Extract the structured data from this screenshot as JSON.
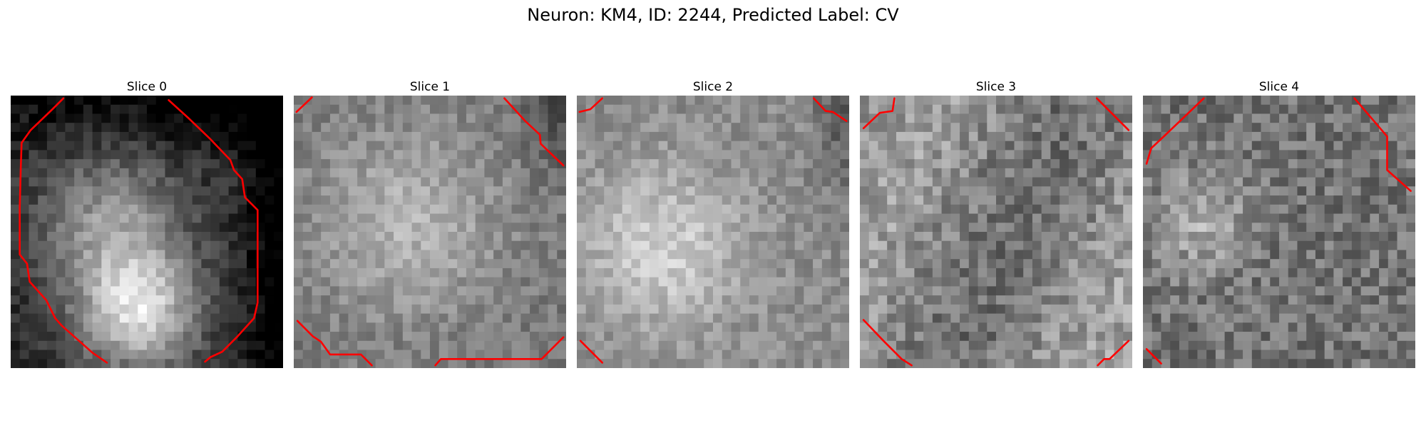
{
  "figure": {
    "title": "Neuron: KM4, ID: 2244, Predicted Label: CV",
    "contour_color": "#ff0000",
    "panels": [
      {
        "title": "Slice 0",
        "seed": 11,
        "brightness": "dark-edges-bright-center-bottom"
      },
      {
        "title": "Slice 1",
        "seed": 23,
        "brightness": "mid"
      },
      {
        "title": "Slice 2",
        "seed": 37,
        "brightness": "smooth-light"
      },
      {
        "title": "Slice 3",
        "seed": 51,
        "brightness": "noisy"
      },
      {
        "title": "Slice 4",
        "seed": 67,
        "brightness": "noisy-dark"
      }
    ]
  }
}
